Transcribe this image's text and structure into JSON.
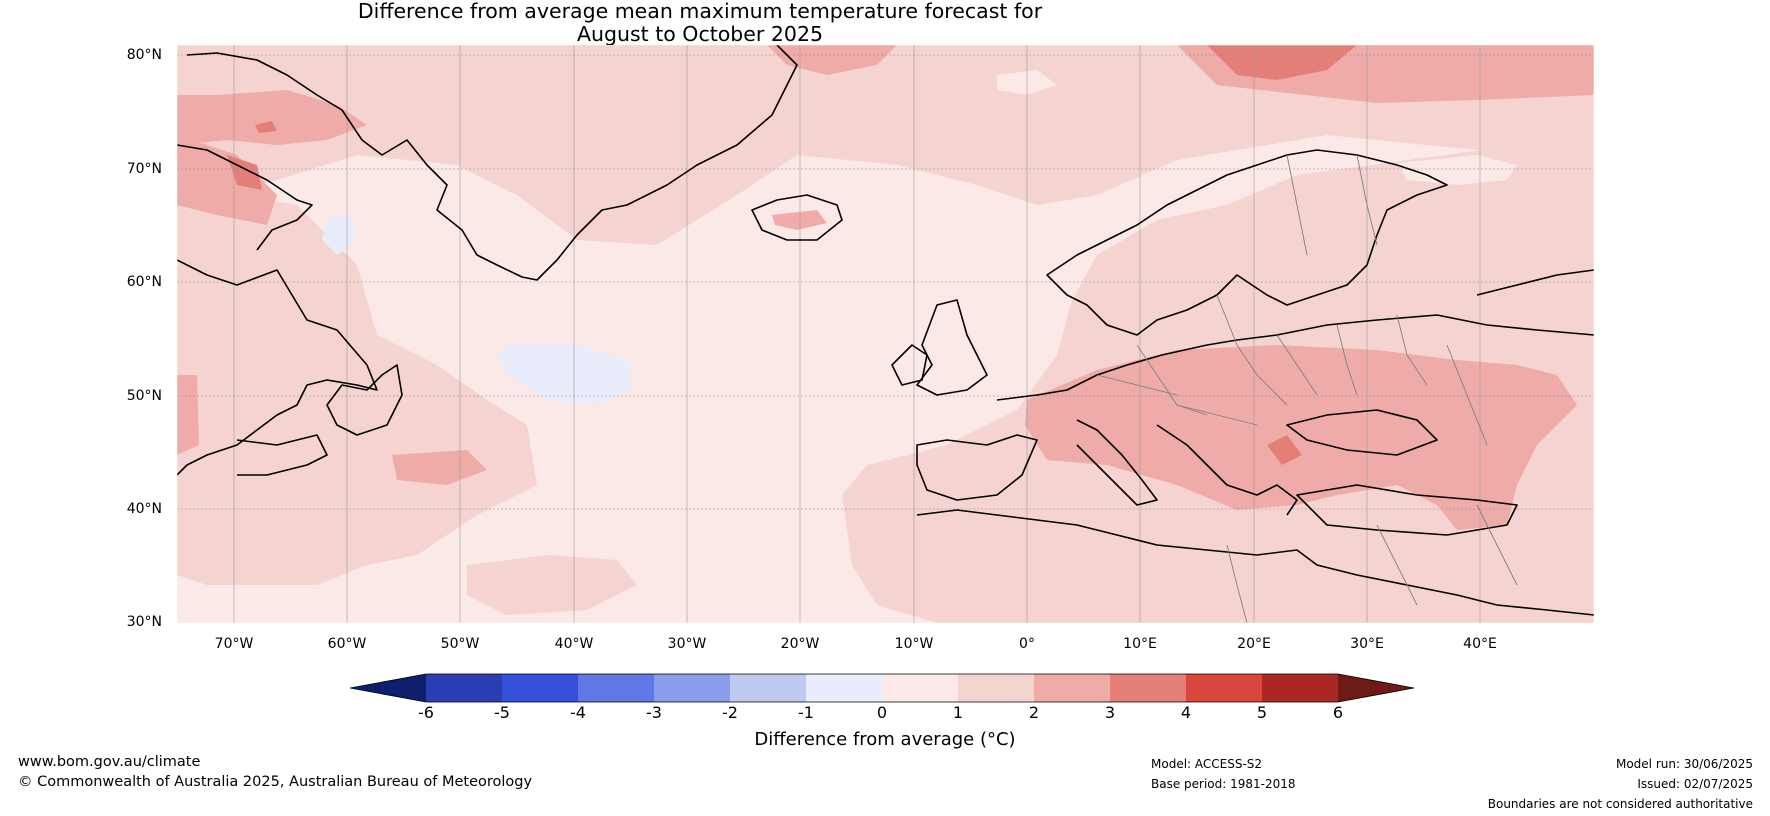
{
  "title": {
    "line1": "Difference from average mean maximum temperature forecast for",
    "line2": "August to October 2025"
  },
  "axes": {
    "lat_labels": [
      "80°N",
      "70°N",
      "60°N",
      "50°N",
      "40°N",
      "30°N"
    ],
    "lon_labels": [
      "70°W",
      "60°W",
      "50°W",
      "40°W",
      "30°W",
      "20°W",
      "10°W",
      "0°",
      "10°E",
      "20°E",
      "30°E",
      "40°E"
    ]
  },
  "colorbar": {
    "ticks": [
      "-6",
      "-5",
      "-4",
      "-3",
      "-2",
      "-1",
      "0",
      "1",
      "2",
      "3",
      "4",
      "5",
      "6"
    ],
    "colors": {
      "below_min": "#0f1e6e",
      "m6_m5": "#2a3db2",
      "m5_m4": "#3551dc",
      "m4_m3": "#5f78e6",
      "m3_m2": "#8b9ceb",
      "m2_m1": "#c1c9f2",
      "m1_0": "#e8ecfb",
      "p0_1": "#fbe9e7",
      "p1_2": "#f5d3d0",
      "p2_3": "#eeaba8",
      "p3_4": "#e47f78",
      "p4_5": "#d9463d",
      "p5_6": "#ab2822",
      "above_max": "#6e1a17"
    },
    "label": "Difference from average (°C)"
  },
  "footer": {
    "url": "www.bom.gov.au/climate",
    "copyright": "© Commonwealth of Australia 2025, Australian Bureau of Meteorology",
    "model": "Model: ACCESS-S2",
    "base_period": "Base period: 1981-2018",
    "model_run": "Model run: 30/06/2025",
    "issued": "Issued: 02/07/2025",
    "disclaimer": "Boundaries are not considered authoritative"
  }
}
